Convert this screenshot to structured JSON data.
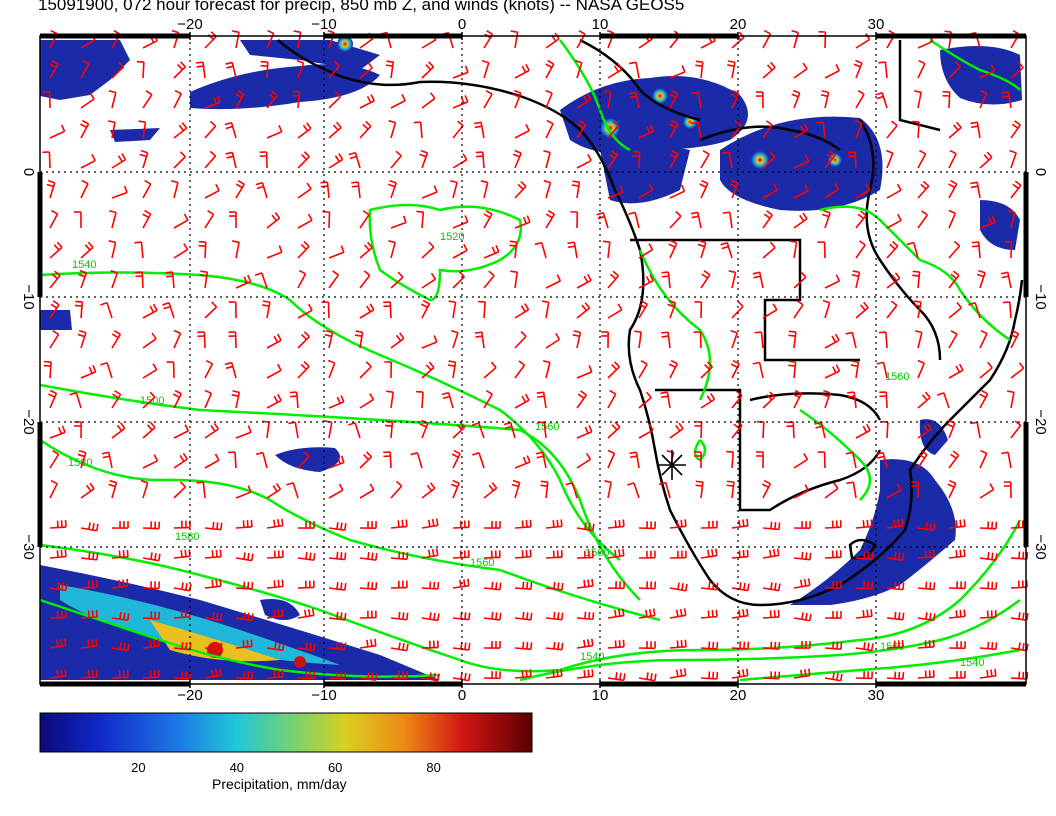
{
  "title": "15091900, 072 hour forecast for precip, 850 mb Z, and winds (knots) -- NASA GEOS5",
  "map": {
    "lon_ticks": [
      "−20",
      "−10",
      "0",
      "10",
      "20",
      "30"
    ],
    "lat_ticks": [
      "0",
      "−10",
      "−20",
      "−30"
    ],
    "contour_labels": [
      "1520",
      "1540",
      "1580",
      "1500",
      "1560",
      "1580",
      "1560",
      "1560",
      "1540",
      "1560",
      "1540",
      "1560"
    ],
    "colors": {
      "precip_low": "#00008b",
      "precip_high": "#8b0000",
      "contour": "#00ee00",
      "wind_barb": "#ff0000",
      "coast": "#000000"
    }
  },
  "colorbar": {
    "ticks": [
      "20",
      "40",
      "60",
      "80"
    ],
    "tick_values": [
      20,
      40,
      60,
      80
    ],
    "range": [
      0,
      100
    ],
    "label": "Precipitation, mm/day"
  }
}
